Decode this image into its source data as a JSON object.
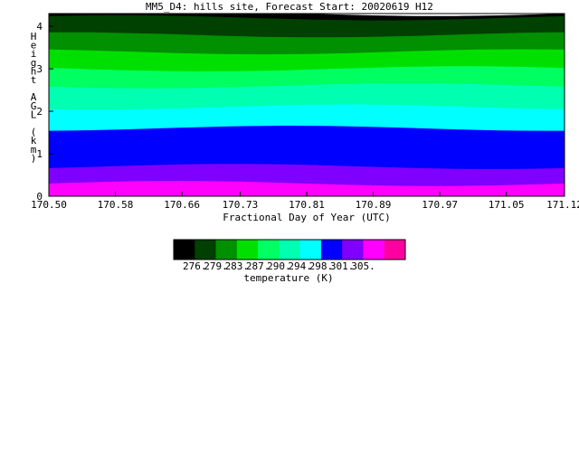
{
  "chart_data": {
    "type": "heatmap",
    "title": "MM5_D4: hills site,  Forecast Start: 20020619 H12",
    "xlabel": "Fractional Day of Year (UTC)",
    "ylabel": "Height AGL (km)",
    "xlim": [
      170.5,
      171.12
    ],
    "ylim": [
      0,
      4.3
    ],
    "x_ticks": [
      "170.50",
      "170.58",
      "170.66",
      "170.73",
      "170.81",
      "170.89",
      "170.97",
      "171.05",
      "171.12"
    ],
    "y_ticks": [
      "0",
      "1",
      "2",
      "3",
      "4"
    ],
    "colorbar": {
      "label": "temperature (K)",
      "tick_labels": [
        "276.",
        "279.",
        "283.",
        "287.",
        "290.",
        "294.",
        "298.",
        "301.",
        "305."
      ],
      "colors": [
        "#000000",
        "#004000",
        "#009000",
        "#00e000",
        "#00ff60",
        "#00ffb0",
        "#00ffff",
        "#0000ff",
        "#8000ff",
        "#ff00ff",
        "#ff00a0"
      ]
    },
    "temperature_bands_K": [
      {
        "range": [
          274.2,
          276.0
        ],
        "color": "#000000",
        "height_km": [
          4.2,
          4.3
        ]
      },
      {
        "range": [
          276.0,
          279.0
        ],
        "color": "#004000",
        "height_km": [
          3.8,
          4.2
        ]
      },
      {
        "range": [
          279.0,
          283.0
        ],
        "color": "#009000",
        "height_km": [
          3.4,
          3.8
        ]
      },
      {
        "range": [
          283.0,
          287.0
        ],
        "color": "#00e000",
        "height_km": [
          3.0,
          3.4
        ]
      },
      {
        "range": [
          287.0,
          290.0
        ],
        "color": "#00ff60",
        "height_km": [
          2.6,
          3.0
        ]
      },
      {
        "range": [
          290.0,
          294.0
        ],
        "color": "#00ffb0",
        "height_km": [
          2.1,
          2.6
        ]
      },
      {
        "range": [
          294.0,
          298.0
        ],
        "color": "#00ffff",
        "height_km": [
          1.6,
          2.1
        ]
      },
      {
        "range": [
          298.0,
          301.0
        ],
        "color": "#0000ff",
        "height_km": [
          0.7,
          1.6
        ]
      },
      {
        "range": [
          301.0,
          305.0
        ],
        "color": "#8000ff",
        "height_km": [
          0.3,
          0.7
        ]
      },
      {
        "range": [
          305.0,
          307.0
        ],
        "color": "#ff00ff",
        "height_km": [
          0.0,
          0.3
        ]
      }
    ]
  }
}
